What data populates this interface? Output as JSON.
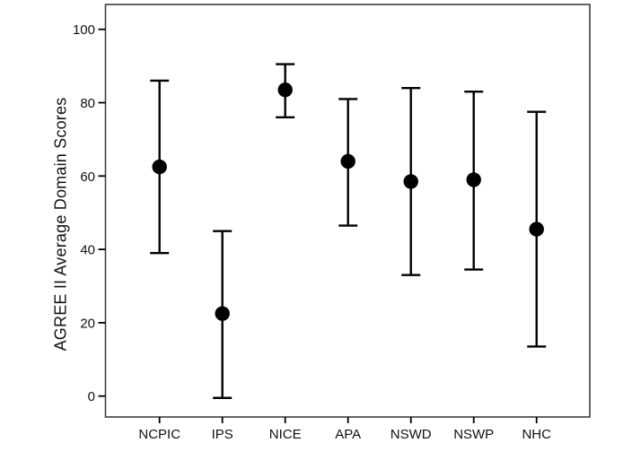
{
  "figure": {
    "background": "#ffffff",
    "ink_color": "#000000",
    "frame_color": "#3f3f3f",
    "text_color": "#111111"
  },
  "chart_data": {
    "type": "scatter",
    "subtype": "point-estimate-with-error-bars",
    "title": "",
    "xlabel": "",
    "ylabel": "AGREE II Average Domain Scores",
    "categories": [
      "NCPIC",
      "IPS",
      "NICE",
      "APA",
      "NSWD",
      "NSWP",
      "NHC"
    ],
    "series": [
      {
        "name": "Mean score",
        "values": [
          62.5,
          22.5,
          83.5,
          64.0,
          58.5,
          59.0,
          45.5
        ]
      },
      {
        "name": "Error lower",
        "values": [
          39.0,
          -0.5,
          76.0,
          46.5,
          33.0,
          34.5,
          13.5
        ]
      },
      {
        "name": "Error upper",
        "values": [
          86.0,
          45.0,
          90.5,
          81.0,
          84.0,
          83.0,
          77.5
        ]
      }
    ],
    "yticks": [
      0,
      20,
      40,
      60,
      80,
      100
    ],
    "ytick_labels": [
      "0",
      "20",
      "40",
      "60",
      "80",
      "100"
    ],
    "ylim": [
      -6,
      107
    ],
    "grid": false,
    "legend": "none",
    "marker": "filled-circle",
    "marker_color": "#000000"
  }
}
